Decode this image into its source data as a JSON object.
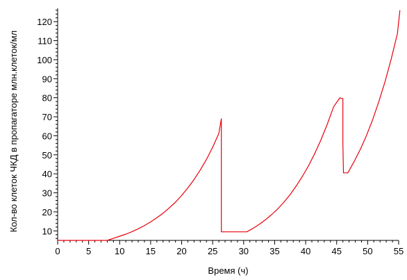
{
  "chart_data": {
    "type": "line",
    "title": "",
    "xlabel": "Время (ч)",
    "ylabel": "Кол-во клеток ЧКД в пропагаторе млн.клеток/мл",
    "xlim": [
      0,
      55
    ],
    "ylim": [
      5,
      127
    ],
    "grid": false,
    "x_ticks": [
      "0",
      "5",
      "10",
      "15",
      "20",
      "25",
      "30",
      "35",
      "40",
      "45",
      "50",
      "55"
    ],
    "y_ticks": [
      "10",
      "20",
      "30",
      "40",
      "50",
      "60",
      "70",
      "80",
      "90",
      "100",
      "110",
      "120"
    ],
    "series": [
      {
        "color": "#e8000b",
        "x": [
          0,
          8,
          9,
          10,
          11,
          12,
          13,
          14,
          15,
          16,
          17,
          18,
          19,
          20,
          21,
          22,
          23,
          24,
          25,
          26,
          26.4,
          26.4,
          30.5,
          30.5,
          31.5,
          32.5,
          33.5,
          34.5,
          35.5,
          36.5,
          37.5,
          38.5,
          39.5,
          40.5,
          41.5,
          42.5,
          43.5,
          44.5,
          45.5,
          46,
          46,
          46.1,
          46.8,
          46.8,
          47.8,
          48.8,
          49.8,
          50.8,
          51.8,
          52.8,
          53.8,
          54.8,
          55.2
        ],
        "y": [
          5,
          5,
          6.05,
          7.2,
          8.3,
          9.6,
          11.1,
          12.8,
          14.7,
          16.9,
          19.3,
          22.1,
          25.1,
          28.6,
          32.6,
          37.0,
          42.0,
          47.6,
          54.0,
          61.2,
          69.0,
          9.5,
          9.5,
          9.5,
          11.3,
          13.4,
          15.8,
          18.5,
          21.6,
          25.1,
          29.1,
          33.7,
          38.8,
          44.5,
          50.9,
          58.1,
          66.2,
          75.2,
          79.9,
          79.5,
          56,
          40.5,
          40.5,
          40.5,
          46.3,
          52.8,
          60.1,
          68.4,
          77.9,
          88.5,
          100.4,
          113.7,
          126
        ]
      }
    ]
  }
}
